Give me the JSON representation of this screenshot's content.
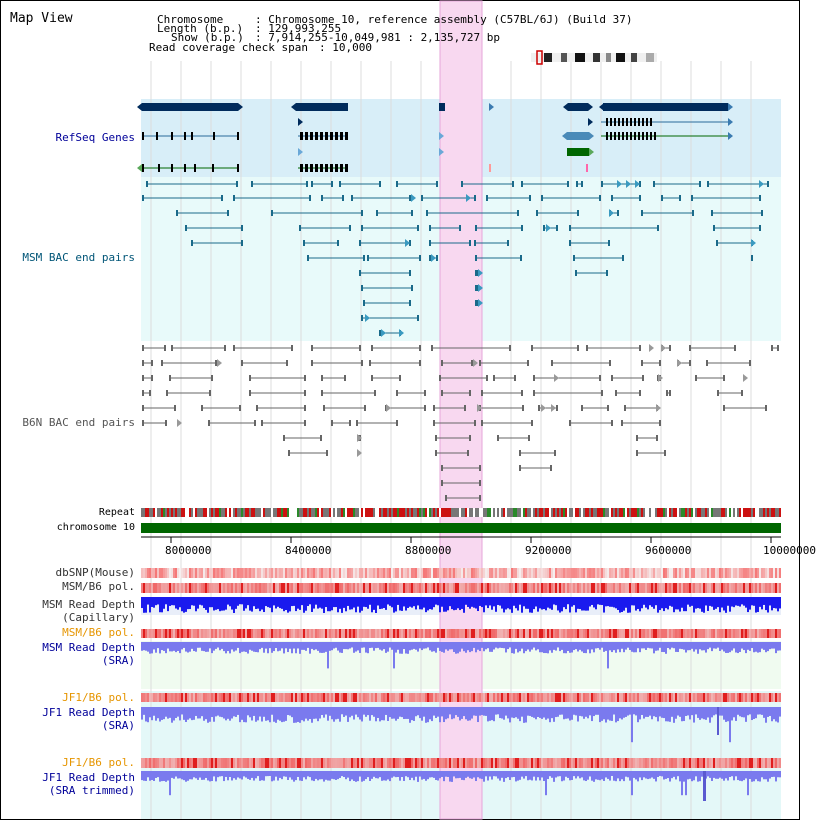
{
  "view": {
    "title": "Map View",
    "header": {
      "chromosome_label": "Chromosome",
      "chromosome_value": ": Chromosome 10, reference assembly (C57BL/6J) (Build 37)",
      "length_label": "Length (b.p.)",
      "length_value": ": 129,993,255",
      "show_label": "Show (b.p.)",
      "show_value": ": 7,914,255-10,049,981 : 2,135,727 bp",
      "span_label": "Read coverage check span",
      "span_value": ": 10,000"
    }
  },
  "tracks": {
    "refseq": {
      "label": "RefSeq Genes",
      "color": "#000099"
    },
    "msm_bac": {
      "label": "MSM BAC end pairs",
      "color": "#005577"
    },
    "b6n_bac": {
      "label": "B6N BAC end pairs",
      "color": "#555555"
    },
    "repeat": {
      "label": "Repeat"
    },
    "chromosome": {
      "label": "chromosome 10"
    },
    "dbsnp": {
      "label": "dbSNP(Mouse)",
      "color": "#333333"
    },
    "msm_b6_pol": {
      "label": "MSM/B6 pol.",
      "color": "#333333"
    },
    "msm_depth_cap": {
      "label_line1": "MSM Read Depth",
      "label_line2": "(Capillary)",
      "color": "#333333"
    },
    "msm_b6_pol_2": {
      "label": "MSM/B6 pol.",
      "color": "#e69500"
    },
    "msm_depth_sra": {
      "label_line1": "MSM Read Depth",
      "label_line2": "(SRA)",
      "color": "#000099"
    },
    "jf1_b6_pol": {
      "label": "JF1/B6 pol.",
      "color": "#e69500"
    },
    "jf1_depth_sra": {
      "label_line1": "JF1 Read Depth",
      "label_line2": "(SRA)",
      "color": "#000099"
    },
    "jf1_b6_pol_2": {
      "label": "JF1/B6 pol.",
      "color": "#e69500"
    },
    "jf1_depth_trim": {
      "label_line1": "JF1 Read Depth",
      "label_line2": "(SRA trimmed)",
      "color": "#000099"
    }
  },
  "axis": {
    "ticks": [
      "8000000",
      "8400000",
      "8800000",
      "9200000",
      "9600000",
      "10000000"
    ],
    "range": [
      7914255,
      10049981
    ]
  },
  "colors": {
    "refseq_bg": "#d8eef8",
    "msm_bg": "#e8fafa",
    "highlight": "#f8d8f0",
    "gene_dark": "#002b5c",
    "chromosome_green": "#006600",
    "depth_blue": "#1a1aee",
    "depth_light_blue": "#7a7aee",
    "snp_red": "#e83030"
  }
}
